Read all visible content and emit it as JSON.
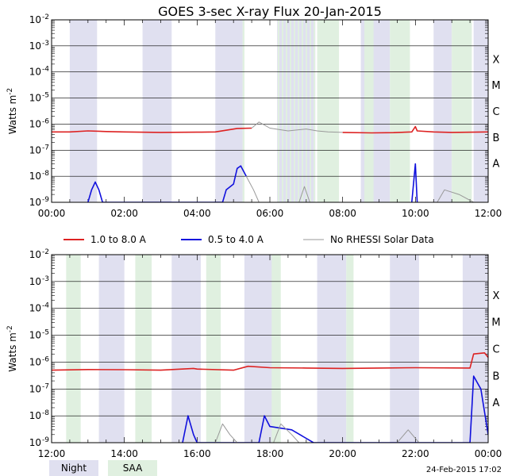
{
  "chart_data": {
    "type": "line",
    "title": "GOES 3-sec X-ray Flux   20-Jan-2015",
    "ylabel_main": "Watts m",
    "ylabel_exp": "-2",
    "y_scale": "log",
    "ylim": [
      1e-09,
      0.01
    ],
    "y_tick_labels": [
      {
        "value": 0.01,
        "base": "10",
        "exp": "-2"
      },
      {
        "value": 0.001,
        "base": "10",
        "exp": "-3"
      },
      {
        "value": 0.0001,
        "base": "10",
        "exp": "-4"
      },
      {
        "value": 1e-05,
        "base": "10",
        "exp": "-5"
      },
      {
        "value": 1e-06,
        "base": "10",
        "exp": "-6"
      },
      {
        "value": 1e-07,
        "base": "10",
        "exp": "-7"
      },
      {
        "value": 1e-08,
        "base": "10",
        "exp": "-8"
      },
      {
        "value": 1e-09,
        "base": "10",
        "exp": "-9"
      }
    ],
    "flare_classes": [
      {
        "label": "X",
        "value": 0.0001
      },
      {
        "label": "M",
        "value": 1e-05
      },
      {
        "label": "C",
        "value": 1e-06
      },
      {
        "label": "B",
        "value": 1e-07
      },
      {
        "label": "A",
        "value": 1e-08
      }
    ],
    "legend": [
      {
        "name": "1.0 to 8.0 A",
        "color": "#dd2222"
      },
      {
        "name": "0.5 to 4.0 A",
        "color": "#1010dd"
      },
      {
        "name": "No RHESSI Solar Data",
        "color": "#999999"
      }
    ],
    "bottom_legend": [
      {
        "name": "Night",
        "color": "#e0e0f0"
      },
      {
        "name": "SAA",
        "color": "#e0f0e0"
      }
    ],
    "timestamp": "24-Feb-2015 17:02",
    "panels": [
      {
        "x_range_hours": [
          0,
          12
        ],
        "x_tick_labels": [
          "00:00",
          "02:00",
          "04:00",
          "06:00",
          "08:00",
          "10:00",
          "12:00"
        ],
        "night": [
          [
            0.5,
            1.25
          ],
          [
            2.5,
            3.3
          ],
          [
            4.5,
            5.25
          ],
          [
            8.5,
            9.3
          ],
          [
            10.5,
            11.0
          ],
          [
            11.6,
            12.0
          ]
        ],
        "night_hatched": [
          [
            6.5,
            7.25
          ]
        ],
        "saa": [
          [
            5.25,
            5.3
          ],
          [
            7.3,
            7.9
          ],
          [
            8.6,
            8.85
          ],
          [
            9.3,
            9.85
          ],
          [
            11.0,
            11.55
          ]
        ],
        "saa_hatched": [
          [
            6.2,
            6.9
          ]
        ],
        "series": [
          {
            "name": "1.0 to 8.0 A",
            "color": "#dd2222",
            "rhessi": false,
            "points": [
              [
                0.0,
                5e-07
              ],
              [
                0.5,
                5e-07
              ],
              [
                1.0,
                5.5e-07
              ],
              [
                1.5,
                5.2e-07
              ],
              [
                2.0,
                5e-07
              ],
              [
                3.0,
                4.8e-07
              ],
              [
                4.0,
                4.9e-07
              ],
              [
                4.5,
                5e-07
              ],
              [
                5.1,
                6.8e-07
              ],
              [
                5.5,
                7e-07
              ]
            ]
          },
          {
            "name": "1.0 to 8.0 A (no RHESSI)",
            "color": "#999999",
            "rhessi": true,
            "points": [
              [
                5.5,
                7e-07
              ],
              [
                5.7,
                1.2e-06
              ],
              [
                6.0,
                7e-07
              ],
              [
                6.5,
                5.5e-07
              ],
              [
                7.0,
                6.5e-07
              ],
              [
                7.3,
                5.5e-07
              ],
              [
                7.6,
                5e-07
              ],
              [
                8.0,
                4.8e-07
              ]
            ]
          },
          {
            "name": "1.0 to 8.0 A",
            "color": "#dd2222",
            "rhessi": false,
            "points": [
              [
                8.0,
                4.8e-07
              ],
              [
                8.8,
                4.6e-07
              ],
              [
                9.4,
                4.7e-07
              ],
              [
                9.9,
                5e-07
              ],
              [
                10.0,
                8e-07
              ],
              [
                10.05,
                5.5e-07
              ],
              [
                10.5,
                5e-07
              ],
              [
                11.0,
                4.8e-07
              ],
              [
                12.0,
                5e-07
              ]
            ]
          },
          {
            "name": "0.5 to 4.0 A",
            "color": "#1010dd",
            "rhessi": false,
            "points": [
              [
                1.0,
                1e-09
              ],
              [
                1.1,
                3e-09
              ],
              [
                1.2,
                6e-09
              ],
              [
                1.3,
                3e-09
              ],
              [
                1.4,
                1e-09
              ],
              [
                4.7,
                1e-09
              ],
              [
                4.8,
                3e-09
              ],
              [
                5.0,
                5e-09
              ],
              [
                5.1,
                2e-08
              ],
              [
                5.2,
                2.5e-08
              ],
              [
                5.35,
                1e-08
              ]
            ]
          },
          {
            "name": "0.5 to 4.0 A (no RHESSI)",
            "color": "#999999",
            "rhessi": true,
            "points": [
              [
                5.35,
                1e-08
              ],
              [
                5.55,
                3e-09
              ],
              [
                5.7,
                1e-09
              ],
              [
                6.8,
                1e-09
              ],
              [
                6.95,
                4e-09
              ],
              [
                7.1,
                1e-09
              ],
              [
                10.6,
                1e-09
              ],
              [
                10.8,
                3e-09
              ],
              [
                11.2,
                2e-09
              ],
              [
                11.6,
                1e-09
              ]
            ]
          },
          {
            "name": "0.5 to 4.0 A",
            "color": "#1010dd",
            "rhessi": false,
            "points": [
              [
                9.9,
                1e-09
              ],
              [
                10.0,
                3e-08
              ],
              [
                10.05,
                1e-09
              ]
            ]
          }
        ]
      },
      {
        "x_range_hours": [
          12,
          24
        ],
        "x_tick_labels": [
          "12:00",
          "14:00",
          "16:00",
          "18:00",
          "20:00",
          "22:00",
          "00:00"
        ],
        "night": [
          [
            13.3,
            14.0
          ],
          [
            15.3,
            16.1
          ],
          [
            17.3,
            18.1
          ],
          [
            19.3,
            20.1
          ],
          [
            21.3,
            22.1
          ],
          [
            23.3,
            24.0
          ]
        ],
        "night_hatched": [],
        "saa": [
          [
            12.4,
            12.8
          ],
          [
            14.3,
            14.75
          ],
          [
            16.25,
            16.65
          ],
          [
            18.05,
            18.3
          ],
          [
            20.1,
            20.3
          ]
        ],
        "saa_hatched": [],
        "series": [
          {
            "name": "1.0 to 8.0 A",
            "color": "#dd2222",
            "rhessi": false,
            "points": [
              [
                12.0,
                5e-07
              ],
              [
                13.0,
                5.3e-07
              ],
              [
                14.0,
                5.2e-07
              ],
              [
                15.0,
                5e-07
              ],
              [
                15.9,
                5.8e-07
              ],
              [
                16.0,
                5.5e-07
              ],
              [
                17.0,
                5e-07
              ],
              [
                17.4,
                7e-07
              ],
              [
                18.0,
                6.2e-07
              ],
              [
                19.0,
                6e-07
              ],
              [
                20.0,
                5.8e-07
              ],
              [
                21.0,
                6e-07
              ],
              [
                22.0,
                6.2e-07
              ],
              [
                23.5,
                6e-07
              ],
              [
                23.6,
                2e-06
              ],
              [
                23.9,
                2.2e-06
              ],
              [
                24.0,
                1.5e-06
              ]
            ]
          },
          {
            "name": "0.5 to 4.0 A",
            "color": "#1010dd",
            "rhessi": false,
            "points": [
              [
                15.6,
                1e-09
              ],
              [
                15.75,
                1e-08
              ],
              [
                15.9,
                2e-09
              ],
              [
                16.0,
                1e-09
              ],
              [
                17.7,
                1e-09
              ],
              [
                17.85,
                1e-08
              ],
              [
                18.0,
                4e-09
              ],
              [
                18.6,
                3e-09
              ],
              [
                19.2,
                1e-09
              ],
              [
                23.5,
                1e-09
              ],
              [
                23.6,
                3e-07
              ],
              [
                23.8,
                1e-07
              ],
              [
                24.0,
                2e-09
              ]
            ]
          },
          {
            "name": "0.5 to 4.0 A (no RHESSI)",
            "color": "#999999",
            "rhessi": true,
            "points": [
              [
                16.5,
                1e-09
              ],
              [
                16.7,
                5e-09
              ],
              [
                16.9,
                2e-09
              ],
              [
                17.1,
                1e-09
              ],
              [
                18.1,
                1e-09
              ],
              [
                18.3,
                5e-09
              ],
              [
                18.6,
                2e-09
              ],
              [
                18.8,
                1e-09
              ],
              [
                21.5,
                1e-09
              ],
              [
                21.8,
                3e-09
              ],
              [
                22.1,
                1e-09
              ]
            ]
          }
        ]
      }
    ]
  }
}
